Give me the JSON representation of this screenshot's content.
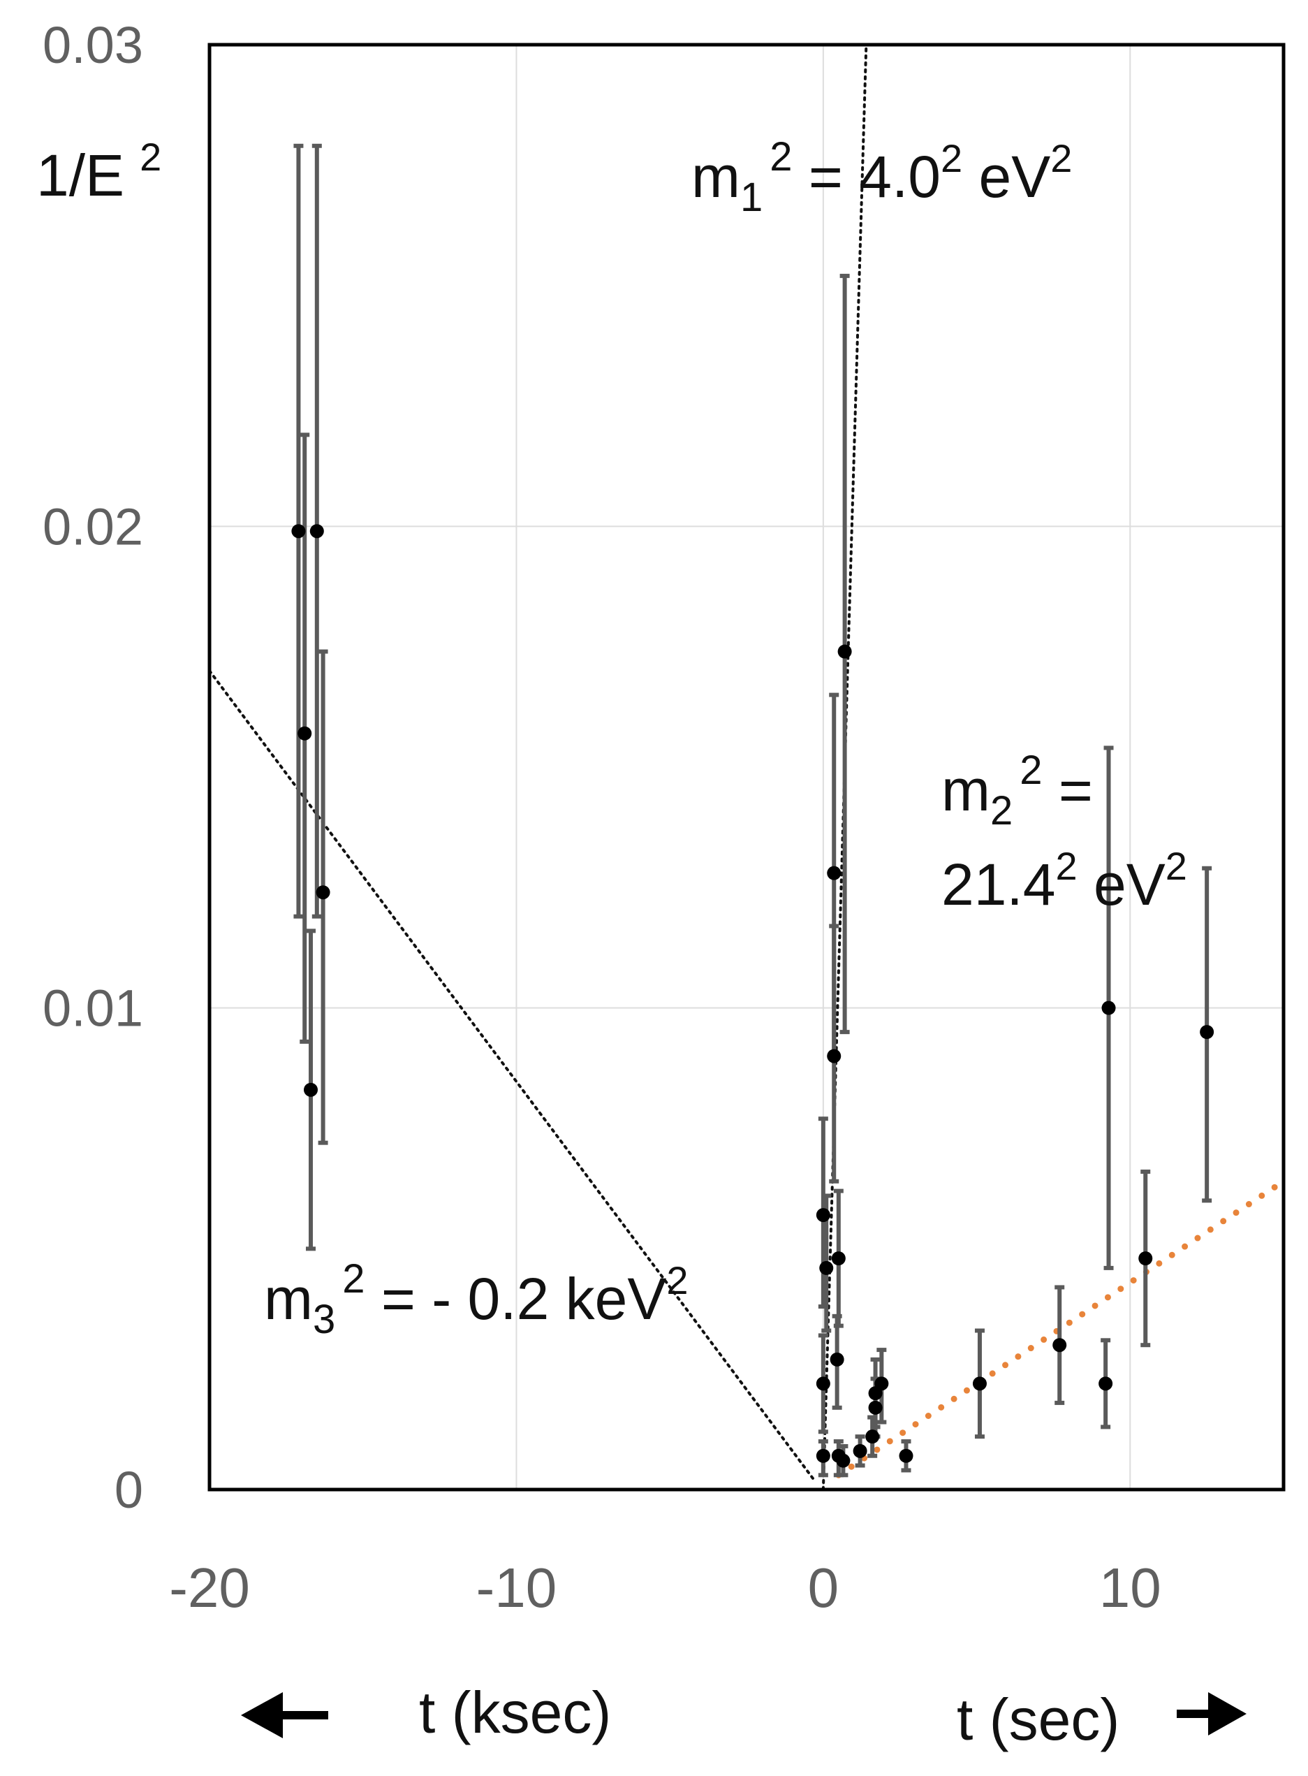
{
  "chart_data": {
    "type": "scatter",
    "title": "",
    "ylabel_main": "1/E",
    "ylabel_sup": "2",
    "xlim": [
      -20,
      15
    ],
    "ylim": [
      0,
      0.03
    ],
    "grid": true,
    "yticks": [
      {
        "value": 0,
        "label": "0"
      },
      {
        "value": 0.01,
        "label": "0.01"
      },
      {
        "value": 0.02,
        "label": "0.02"
      },
      {
        "value": 0.03,
        "label": "0.03"
      }
    ],
    "xticks": [
      {
        "value": -20,
        "label": "-20"
      },
      {
        "value": -10,
        "label": "-10"
      },
      {
        "value": 0,
        "label": "0"
      },
      {
        "value": 10,
        "label": "10"
      }
    ],
    "xlabel_left": "t (ksec)",
    "xlabel_right": "t (sec)",
    "annotations": [
      {
        "id": "m1",
        "base": "m",
        "sub": "1",
        "sup": "2",
        "rest": " = 4.0",
        "rest_sup": "2",
        "tail": " eV",
        "tail_sup": "2"
      },
      {
        "id": "m2",
        "base": "m",
        "sub": "2",
        "sup": "2",
        "rest": " =",
        "line2": "21.4",
        "line2_sup": "2",
        "line2_tail": " eV",
        "line2_tail_sup": "2"
      },
      {
        "id": "m3",
        "base": "m",
        "sub": "3",
        "sup": "2",
        "rest": " = - 0.2 keV",
        "rest_sup": "2"
      }
    ],
    "series": [
      {
        "points": [
          {
            "x": -17.1,
            "y": 0.0199,
            "ylo": 0.0119,
            "yhi": 0.0279
          },
          {
            "x": -16.5,
            "y": 0.0199,
            "ylo": 0.0119,
            "yhi": 0.0279
          },
          {
            "x": -16.9,
            "y": 0.0157,
            "ylo": 0.0093,
            "yhi": 0.0219
          },
          {
            "x": -16.3,
            "y": 0.0124,
            "ylo": 0.0072,
            "yhi": 0.0174
          },
          {
            "x": -16.7,
            "y": 0.0083,
            "ylo": 0.005,
            "yhi": 0.0116
          },
          {
            "x": 0.0,
            "y": 0.0057,
            "ylo": 0.0038,
            "yhi": 0.0077
          },
          {
            "x": 0.1,
            "y": 0.0046,
            "ylo": 0.0033,
            "yhi": 0.0061
          },
          {
            "x": 0.0,
            "y": 0.0022,
            "ylo": 0.0012,
            "yhi": 0.0032
          },
          {
            "x": 0.0,
            "y": 0.0007,
            "ylo": 0.0003,
            "yhi": 0.001
          },
          {
            "x": 0.35,
            "y": 0.0128,
            "ylo": 0.009,
            "yhi": 0.0165
          },
          {
            "x": 0.35,
            "y": 0.009,
            "ylo": 0.0064,
            "yhi": 0.0117
          },
          {
            "x": 0.5,
            "y": 0.0048,
            "ylo": 0.0034,
            "yhi": 0.0062
          },
          {
            "x": 0.45,
            "y": 0.0027,
            "ylo": 0.0017,
            "yhi": 0.0036
          },
          {
            "x": 0.5,
            "y": 0.0007,
            "ylo": 0.0003,
            "yhi": 0.001
          },
          {
            "x": 0.7,
            "y": 0.0174,
            "ylo": 0.0095,
            "yhi": 0.0252
          },
          {
            "x": 0.65,
            "y": 0.0006,
            "ylo": 0.0003,
            "yhi": 0.0009
          },
          {
            "x": 1.2,
            "y": 0.0008,
            "ylo": 0.0005,
            "yhi": 0.0011
          },
          {
            "x": 1.6,
            "y": 0.0011,
            "ylo": 0.0007,
            "yhi": 0.0015
          },
          {
            "x": 1.7,
            "y": 0.0017,
            "ylo": 0.0011,
            "yhi": 0.0023
          },
          {
            "x": 1.7,
            "y": 0.002,
            "ylo": 0.0013,
            "yhi": 0.0027
          },
          {
            "x": 1.9,
            "y": 0.0022,
            "ylo": 0.0014,
            "yhi": 0.0029
          },
          {
            "x": 2.7,
            "y": 0.0007,
            "ylo": 0.0004,
            "yhi": 0.001
          },
          {
            "x": 5.1,
            "y": 0.0022,
            "ylo": 0.0011,
            "yhi": 0.0033
          },
          {
            "x": 7.7,
            "y": 0.003,
            "ylo": 0.0018,
            "yhi": 0.0042
          },
          {
            "x": 9.2,
            "y": 0.0022,
            "ylo": 0.0013,
            "yhi": 0.0031
          },
          {
            "x": 9.3,
            "y": 0.01,
            "ylo": 0.0046,
            "yhi": 0.0154
          },
          {
            "x": 10.5,
            "y": 0.0048,
            "ylo": 0.003,
            "yhi": 0.0066
          },
          {
            "x": 12.5,
            "y": 0.0095,
            "ylo": 0.006,
            "yhi": 0.0129
          }
        ]
      }
    ],
    "fit_lines": [
      {
        "id": "m1-fit",
        "color": "#111111",
        "from": [
          0,
          0
        ],
        "to": [
          1.4,
          0.03
        ]
      },
      {
        "id": "m2-fit",
        "color": "#E8843A",
        "from": [
          0.5,
          0.0003
        ],
        "to": [
          15,
          0.0064
        ]
      },
      {
        "id": "m3-fit",
        "color": "#111111",
        "from": [
          -20,
          0.017
        ],
        "to": [
          -0.3,
          0.0002
        ]
      }
    ],
    "colors": {
      "errorbar": "#5a5a5a",
      "marker": "#000000",
      "grid": "#dddddd",
      "frame": "#000000"
    }
  }
}
